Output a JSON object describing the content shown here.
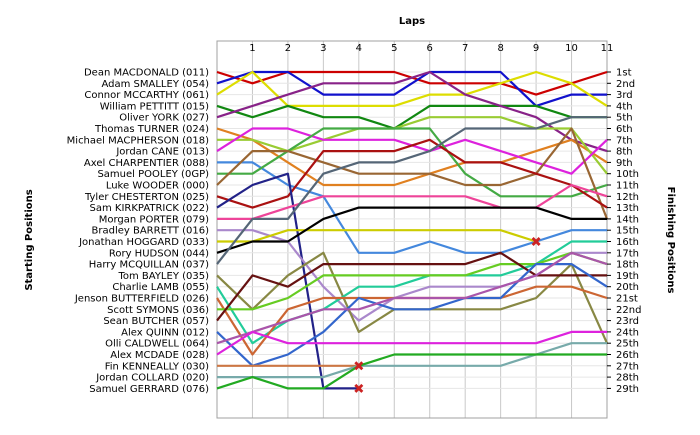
{
  "chart_data": {
    "type": "line",
    "title": "",
    "xlabel": "Laps",
    "ylabel_left": "Starting Positions",
    "ylabel_right": "Finishing Positions",
    "laps": [
      1,
      2,
      3,
      4,
      5,
      6,
      7,
      8,
      9,
      10,
      11
    ],
    "x_range": [
      0,
      11
    ],
    "position_range": [
      1,
      29
    ],
    "grid": true,
    "finishing_labels": [
      "1st",
      "2nd",
      "3rd",
      "4th",
      "5th",
      "6th",
      "7th",
      "8th",
      "9th",
      "10th",
      "11th",
      "12th",
      "13th",
      "14th",
      "15th",
      "16th",
      "17th",
      "18th",
      "19th",
      "20th",
      "21st",
      "22nd",
      "23rd",
      "24th",
      "25th",
      "26th",
      "27th",
      "28th",
      "29th"
    ],
    "series": [
      {
        "name": "Dean MACDONALD (011)",
        "color": "#cc0000",
        "positions": [
          1,
          2,
          1,
          1,
          1,
          1,
          2,
          2,
          2,
          3,
          2,
          1
        ],
        "retired": false
      },
      {
        "name": "Adam SMALLEY (054)",
        "color": "#1111cc",
        "positions": [
          2,
          1,
          1,
          3,
          3,
          3,
          1,
          1,
          1,
          4,
          3,
          3
        ],
        "retired": false
      },
      {
        "name": "Connor MCCARTHY (061)",
        "color": "#dddd00",
        "positions": [
          3,
          1,
          4,
          4,
          4,
          4,
          3,
          3,
          2,
          1,
          2,
          4
        ],
        "retired": false
      },
      {
        "name": "William PETTITT (015)",
        "color": "#118811",
        "positions": [
          4,
          5,
          4,
          5,
          5,
          6,
          4,
          4,
          4,
          4,
          5,
          5
        ],
        "retired": false
      },
      {
        "name": "Oliver YORK (027)",
        "color": "#882288",
        "positions": [
          5,
          4,
          3,
          2,
          2,
          2,
          1,
          3,
          4,
          5,
          7,
          8
        ],
        "retired": false
      },
      {
        "name": "Thomas TURNER (024)",
        "color": "#e08020",
        "positions": [
          6,
          7,
          9,
          11,
          11,
          11,
          10,
          9,
          9,
          8,
          7,
          9
        ],
        "retired": false
      },
      {
        "name": "Michael MACPHERSON (018)",
        "color": "#99cc33",
        "positions": [
          7,
          7,
          8,
          7,
          6,
          6,
          5,
          5,
          5,
          6,
          6,
          10
        ],
        "retired": false
      },
      {
        "name": "Jordan CANE (013)",
        "color": "#dd22dd",
        "positions": [
          8,
          6,
          6,
          7,
          7,
          7,
          8,
          7,
          8,
          9,
          10,
          7
        ],
        "retired": false
      },
      {
        "name": "Axel CHARPENTIER (088)",
        "color": "#4488dd",
        "positions": [
          9,
          9,
          11,
          12,
          17,
          17,
          16,
          17,
          17,
          16,
          15,
          15
        ],
        "retired": false
      },
      {
        "name": "Samuel POOLEY (0GP)",
        "color": "#44aa44",
        "positions": [
          10,
          10,
          8,
          6,
          6,
          6,
          6,
          10,
          12,
          12,
          12,
          11
        ],
        "retired": false
      },
      {
        "name": "Luke WOODER (000)",
        "color": "#996633",
        "positions": [
          11,
          8,
          8,
          9,
          10,
          10,
          10,
          11,
          11,
          10,
          6,
          14
        ],
        "retired": false
      },
      {
        "name": "Tyler CHESTERTON (025)",
        "color": "#aa1111",
        "positions": [
          12,
          13,
          12,
          8,
          8,
          8,
          7,
          9,
          9,
          10,
          11,
          13
        ],
        "retired": false
      },
      {
        "name": "Sam KIRKPATRICK (022)",
        "color": "#222288",
        "positions": [
          13,
          11,
          10,
          29,
          29
        ],
        "retired": true
      },
      {
        "name": "Morgan PORTER (079)",
        "color": "#ee4499",
        "positions": [
          14,
          14,
          13,
          12,
          12,
          12,
          12,
          12,
          13,
          13,
          11,
          12
        ],
        "retired": false
      },
      {
        "name": "Bradley BARRETT (016)",
        "color": "#aa88cc",
        "positions": [
          15,
          15,
          16,
          20,
          23,
          21,
          20,
          20,
          20,
          19,
          17,
          17
        ],
        "retired": false
      },
      {
        "name": "Jonathan HOGGARD (033)",
        "color": "#cccc00",
        "positions": [
          16,
          16,
          15,
          15,
          15,
          15,
          15,
          15,
          15,
          16
        ],
        "retired": true
      },
      {
        "name": "Rory HUDSON (044)",
        "color": "#000000",
        "positions": [
          17,
          16,
          16,
          14,
          13,
          13,
          13,
          13,
          13,
          13,
          14,
          14
        ],
        "retired": false
      },
      {
        "name": "Harry MCQUILLAN (037)",
        "color": "#556677",
        "positions": [
          18,
          14,
          14,
          10,
          9,
          9,
          8,
          6,
          6,
          6,
          5,
          5
        ],
        "retired": false
      },
      {
        "name": "Tom BAYLEY (035)",
        "color": "#888844",
        "positions": [
          19,
          22,
          19,
          17,
          24,
          22,
          22,
          22,
          22,
          21,
          18,
          25
        ],
        "retired": false
      },
      {
        "name": "Charlie LAMB (055)",
        "color": "#22cc99",
        "positions": [
          20,
          25,
          23,
          22,
          20,
          20,
          19,
          19,
          19,
          18,
          16,
          16
        ],
        "retired": false
      },
      {
        "name": "Jenson BUTTERFIELD (026)",
        "color": "#cc6633",
        "positions": [
          21,
          26,
          22,
          21,
          21,
          21,
          21,
          21,
          21,
          20,
          20,
          21
        ],
        "retired": false
      },
      {
        "name": "Scott SYMONS (036)",
        "color": "#66cc22",
        "positions": [
          22,
          22,
          21,
          19,
          19,
          19,
          19,
          19,
          18,
          18,
          17,
          18
        ],
        "retired": false
      },
      {
        "name": "Sean BUTCHER (057)",
        "color": "#661111",
        "positions": [
          23,
          19,
          20,
          18,
          18,
          18,
          18,
          18,
          17,
          19,
          19,
          19
        ],
        "retired": false
      },
      {
        "name": "Alex QUINN (012)",
        "color": "#3366cc",
        "positions": [
          24,
          27,
          26,
          24,
          21,
          22,
          22,
          21,
          21,
          18,
          18,
          20
        ],
        "retired": false
      },
      {
        "name": "Olli CALDWELL (064)",
        "color": "#aa55aa",
        "positions": [
          25,
          24,
          23,
          22,
          22,
          21,
          21,
          21,
          20,
          19,
          17,
          18
        ],
        "retired": false
      },
      {
        "name": "Alex MCDADE (028)",
        "color": "#dd22dd",
        "positions": [
          26,
          24,
          25,
          25,
          25,
          25,
          25,
          25,
          25,
          25,
          24,
          24
        ],
        "retired": false
      },
      {
        "name": "Fin KENNEALLY (030)",
        "color": "#cc7744",
        "positions": [
          27,
          27,
          27,
          27,
          27
        ],
        "retired": true
      },
      {
        "name": "Jordan COLLARD (020)",
        "color": "#77aaaa",
        "positions": [
          28,
          28,
          28,
          28,
          27,
          27,
          27,
          27,
          27,
          26,
          25,
          25
        ],
        "retired": false
      },
      {
        "name": "Samuel GERRARD (076)",
        "color": "#22aa22",
        "positions": [
          29,
          28,
          29,
          29,
          27,
          26,
          26,
          26,
          26,
          26,
          26,
          26
        ],
        "retired": false
      }
    ]
  }
}
